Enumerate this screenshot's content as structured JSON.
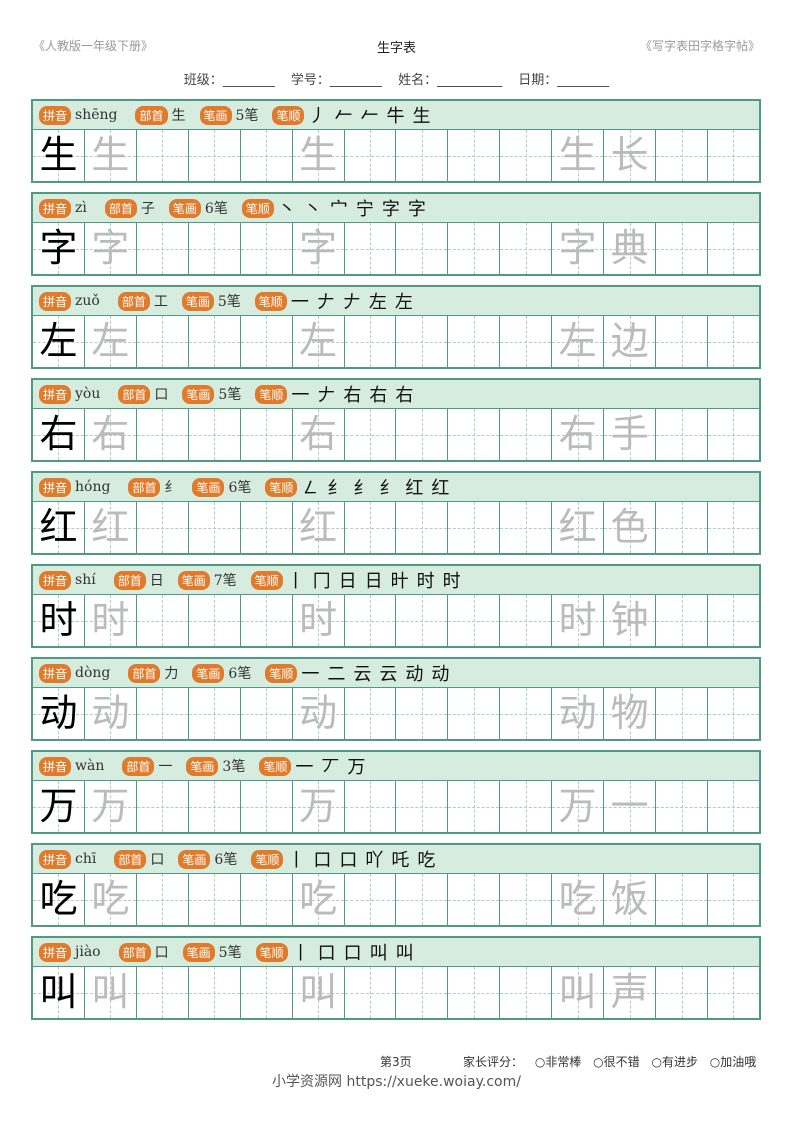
{
  "header": {
    "left": "《人教版一年级下册》",
    "title": "生字表",
    "right": "《写字表田字格字帖》"
  },
  "info_fields": [
    "班级：________",
    "学号：________",
    "姓名：__________",
    "日期：________"
  ],
  "labels": {
    "pinyin": "拼音",
    "radical": "部首",
    "strokes": "笔画",
    "order": "笔顺",
    "stroke_unit": "笔"
  },
  "rows": [
    {
      "char": "生",
      "pinyin": "shēng",
      "radical": "生",
      "strokes": "5",
      "order": [
        "丿",
        "𠂉",
        "𠂉",
        "牛",
        "生"
      ],
      "word": "长"
    },
    {
      "char": "字",
      "pinyin": "zì",
      "radical": "子",
      "strokes": "6",
      "order": [
        "丶",
        "丶",
        "宀",
        "宁",
        "字",
        "字"
      ],
      "word": "典"
    },
    {
      "char": "左",
      "pinyin": "zuǒ",
      "radical": "工",
      "strokes": "5",
      "order": [
        "一",
        "𠂇",
        "𠂇",
        "左",
        "左"
      ],
      "word": "边"
    },
    {
      "char": "右",
      "pinyin": "yòu",
      "radical": "口",
      "strokes": "5",
      "order": [
        "一",
        "𠂇",
        "右",
        "右",
        "右"
      ],
      "word": "手"
    },
    {
      "char": "红",
      "pinyin": "hóng",
      "radical": "纟",
      "strokes": "6",
      "order": [
        "㇜",
        "纟",
        "纟",
        "纟",
        "红",
        "红"
      ],
      "word": "色"
    },
    {
      "char": "时",
      "pinyin": "shí",
      "radical": "日",
      "strokes": "7",
      "order": [
        "丨",
        "冂",
        "日",
        "日",
        "旪",
        "时",
        "时"
      ],
      "word": "钟"
    },
    {
      "char": "动",
      "pinyin": "dòng",
      "radical": "力",
      "strokes": "6",
      "order": [
        "一",
        "二",
        "云",
        "云",
        "动",
        "动"
      ],
      "word": "物"
    },
    {
      "char": "万",
      "pinyin": "wàn",
      "radical": "一",
      "strokes": "3",
      "order": [
        "一",
        "丆",
        "万"
      ],
      "word": "一"
    },
    {
      "char": "吃",
      "pinyin": "chī",
      "radical": "口",
      "strokes": "6",
      "order": [
        "丨",
        "口",
        "口",
        "吖",
        "吒",
        "吃"
      ],
      "word": "饭"
    },
    {
      "char": "叫",
      "pinyin": "jiào",
      "radical": "口",
      "strokes": "5",
      "order": [
        "丨",
        "口",
        "口",
        "叫",
        "叫"
      ],
      "word": "声"
    }
  ],
  "footer": {
    "page": "第3页",
    "rating_label": "家长评分：",
    "options": [
      "○非常棒",
      "○很不错",
      "○有进步",
      "○加油哦"
    ],
    "url": "小学资源网 https://xueke.woiay.com/"
  }
}
